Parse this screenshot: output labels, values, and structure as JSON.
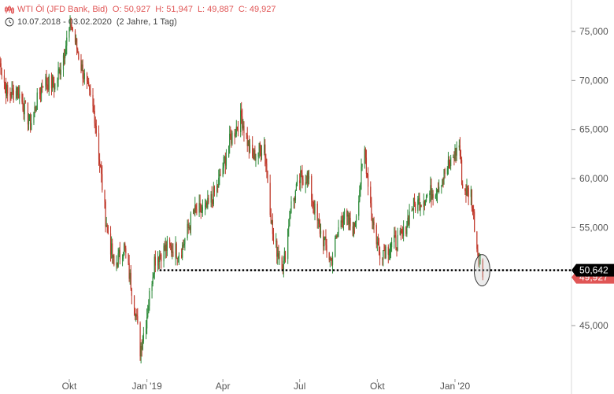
{
  "header": {
    "instrument": "WTI Öl (JFD Bank, Bid)",
    "open": "O: 50,927",
    "high": "H: 51,947",
    "low": "L: 49,887",
    "close": "C: 49,927",
    "date_range": "10.07.2018 - 03.02.2020",
    "period": "(2 Jahre, 1 Tag)",
    "icons": [
      "candlestick-chart-icon",
      "clock-icon"
    ]
  },
  "chart_data": {
    "type": "candlestick",
    "ylim": [
      41500,
      78000
    ],
    "y_ticks": [
      {
        "value": 45000,
        "label": "45,000"
      },
      {
        "value": 55000,
        "label": "55,000"
      },
      {
        "value": 60000,
        "label": "60,000"
      },
      {
        "value": 65000,
        "label": "65,000"
      },
      {
        "value": 70000,
        "label": "70,000"
      },
      {
        "value": 75000,
        "label": "75,000"
      }
    ],
    "x_ticks": [
      "Okt",
      "Jan '19",
      "Apr",
      "Jul",
      "Okt",
      "Jan '20"
    ],
    "x_tick_dates": [
      "2018-10-01",
      "2019-01-01",
      "2019-04-01",
      "2019-07-01",
      "2019-10-01",
      "2020-01-01"
    ],
    "x_range": [
      "2018-07-10",
      "2020-02-03"
    ],
    "close_path": [
      [
        "2018-07-10",
        72000
      ],
      [
        "2018-07-20",
        68500
      ],
      [
        "2018-08-01",
        69000
      ],
      [
        "2018-08-16",
        65500
      ],
      [
        "2018-08-31",
        70000
      ],
      [
        "2018-09-15",
        69500
      ],
      [
        "2018-10-03",
        75800
      ],
      [
        "2018-10-15",
        71500
      ],
      [
        "2018-10-31",
        66500
      ],
      [
        "2018-11-13",
        56000
      ],
      [
        "2018-11-23",
        51000
      ],
      [
        "2018-12-05",
        53000
      ],
      [
        "2018-12-17",
        47500
      ],
      [
        "2018-12-24",
        42500
      ],
      [
        "2018-12-31",
        45500
      ],
      [
        "2019-01-10",
        51800
      ],
      [
        "2019-01-25",
        53000
      ],
      [
        "2019-02-10",
        52500
      ],
      [
        "2019-02-25",
        56500
      ],
      [
        "2019-03-12",
        56800
      ],
      [
        "2019-03-25",
        59000
      ],
      [
        "2019-04-10",
        64000
      ],
      [
        "2019-04-23",
        66300
      ],
      [
        "2019-05-05",
        62000
      ],
      [
        "2019-05-20",
        63500
      ],
      [
        "2019-05-31",
        53500
      ],
      [
        "2019-06-12",
        51200
      ],
      [
        "2019-06-20",
        57000
      ],
      [
        "2019-07-02",
        60000
      ],
      [
        "2019-07-10",
        60200
      ],
      [
        "2019-07-22",
        55500
      ],
      [
        "2019-08-07",
        51500
      ],
      [
        "2019-08-20",
        56300
      ],
      [
        "2019-09-03",
        54800
      ],
      [
        "2019-09-16",
        62800
      ],
      [
        "2019-09-25",
        56000
      ],
      [
        "2019-10-03",
        52500
      ],
      [
        "2019-10-15",
        53000
      ],
      [
        "2019-10-31",
        54000
      ],
      [
        "2019-11-10",
        57000
      ],
      [
        "2019-11-25",
        58000
      ],
      [
        "2019-12-10",
        59000
      ],
      [
        "2019-12-23",
        61000
      ],
      [
        "2020-01-06",
        63500
      ],
      [
        "2020-01-10",
        59000
      ],
      [
        "2020-01-20",
        58500
      ],
      [
        "2020-01-27",
        53000
      ],
      [
        "2020-02-03",
        49927
      ]
    ],
    "support_level": 50642,
    "price_labels": [
      {
        "value": 50642,
        "label": "50,642",
        "color": "#000000"
      },
      {
        "value": 49927,
        "label": "49,927",
        "color": "#e05555"
      }
    ],
    "highlight_date": "2020-02-03",
    "colors": {
      "up": "#2e8b3a",
      "down": "#c0392b",
      "wick": "#555555",
      "support": "#000000",
      "last_price": "#e05555"
    }
  }
}
